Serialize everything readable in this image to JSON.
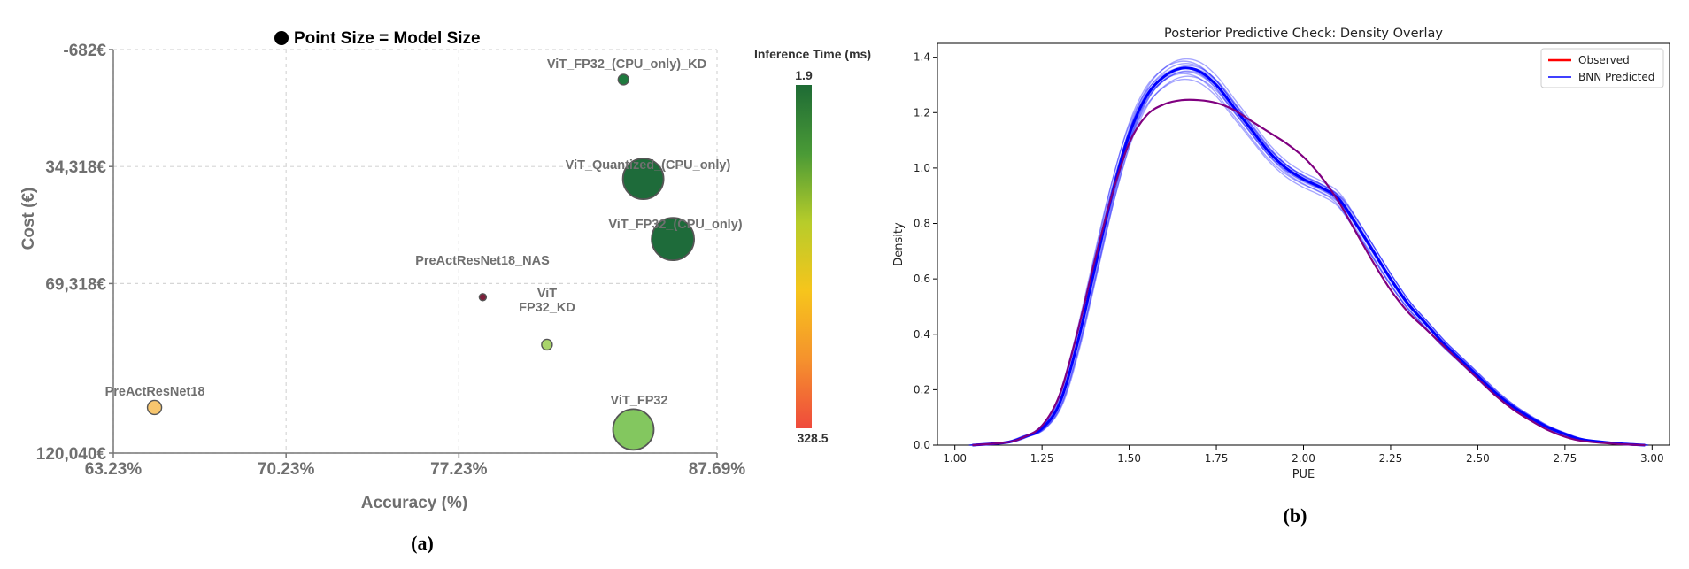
{
  "panels": {
    "a": "(a)",
    "b": "(b)"
  },
  "chart_data": [
    {
      "type": "scatter",
      "title": "Point Size = Model Size",
      "xlabel": "Accuracy (%)",
      "ylabel": "Cost (€)",
      "x_ticks": [
        "63.23%",
        "70.23%",
        "77.23%",
        "87.69%"
      ],
      "x_tick_values": [
        63.23,
        70.23,
        77.23,
        87.69
      ],
      "y_ticks": [
        "-682€",
        "34,318€",
        "69,318€",
        "120,040€"
      ],
      "y_tick_values": [
        -682,
        34318,
        69318,
        120040
      ],
      "xlim": [
        63.23,
        87.69
      ],
      "ylim": [
        120040,
        -682
      ],
      "y_inverted": true,
      "grid": true,
      "colorbar": {
        "label": "Inference Time (ms)",
        "min_label": "1.9",
        "max_label": "328.5",
        "min": 1.9,
        "max": 328.5,
        "colors": [
          "#1e6b35",
          "#4a9a36",
          "#b7cc2a",
          "#f6c51c",
          "#f5922d",
          "#ef4a3c"
        ]
      },
      "points": [
        {
          "label": "ViT_FP32_(CPU_only)_KD",
          "x": 83.9,
          "y": 8300,
          "model_size": 0.1,
          "color": "#1e7a3e"
        },
        {
          "label": "ViT_Quantized_(CPU_only)",
          "x": 84.7,
          "y": 38000,
          "model_size": 0.52,
          "color": "#1e6b3a"
        },
        {
          "label": "ViT_FP32_(CPU_only)",
          "x": 85.9,
          "y": 56000,
          "model_size": 0.62,
          "color": "#1e6b3a"
        },
        {
          "label": "PreActResNet18_NAS",
          "x": 78.2,
          "y": 73400,
          "model_size": 0.02,
          "color": "#7b1f3a"
        },
        {
          "label": "ViT\nFP32_KD",
          "x": 80.8,
          "y": 87600,
          "model_size": 0.11,
          "color": "#a9d46b"
        },
        {
          "label": "PreActResNet18",
          "x": 64.9,
          "y": 106400,
          "model_size": 0.16,
          "color": "#f7c66e"
        },
        {
          "label": "ViT_FP32",
          "x": 84.3,
          "y": 113000,
          "model_size": 0.66,
          "color": "#83c75f"
        }
      ]
    },
    {
      "type": "line",
      "title": "Posterior Predictive Check: Density Overlay",
      "xlabel": "PUE",
      "ylabel": "Density",
      "xlim": [
        0.95,
        3.05
      ],
      "ylim": [
        0,
        1.45
      ],
      "x_ticks": [
        "1.00",
        "1.25",
        "1.50",
        "1.75",
        "2.00",
        "2.25",
        "2.50",
        "2.75",
        "3.00"
      ],
      "y_ticks": [
        "0.0",
        "0.2",
        "0.4",
        "0.6",
        "0.8",
        "1.0",
        "1.2",
        "1.4"
      ],
      "legend": {
        "position": "top-right",
        "entries": [
          {
            "name": "Observed",
            "color": "#ff0000"
          },
          {
            "name": "BNN Predicted",
            "color": "#0000ff"
          }
        ]
      },
      "series": [
        {
          "name": "Observed",
          "color": "#800080",
          "x": [
            1.05,
            1.15,
            1.2,
            1.25,
            1.3,
            1.35,
            1.4,
            1.45,
            1.5,
            1.55,
            1.6,
            1.65,
            1.7,
            1.75,
            1.8,
            1.85,
            1.9,
            1.95,
            2.0,
            2.05,
            2.1,
            2.15,
            2.2,
            2.25,
            2.3,
            2.35,
            2.4,
            2.45,
            2.5,
            2.55,
            2.6,
            2.65,
            2.7,
            2.75,
            2.8,
            2.9,
            2.98
          ],
          "y": [
            0.0,
            0.01,
            0.03,
            0.07,
            0.18,
            0.4,
            0.66,
            0.9,
            1.09,
            1.19,
            1.23,
            1.245,
            1.245,
            1.235,
            1.21,
            1.17,
            1.13,
            1.09,
            1.04,
            0.97,
            0.88,
            0.77,
            0.66,
            0.56,
            0.48,
            0.42,
            0.36,
            0.3,
            0.24,
            0.18,
            0.13,
            0.09,
            0.055,
            0.03,
            0.015,
            0.004,
            0.0
          ]
        },
        {
          "name": "BNN Predicted",
          "color": "#0000ff",
          "x": [
            1.05,
            1.15,
            1.2,
            1.25,
            1.3,
            1.35,
            1.4,
            1.45,
            1.5,
            1.55,
            1.6,
            1.65,
            1.7,
            1.75,
            1.8,
            1.85,
            1.9,
            1.95,
            2.0,
            2.05,
            2.1,
            2.15,
            2.2,
            2.25,
            2.3,
            2.35,
            2.4,
            2.45,
            2.5,
            2.55,
            2.6,
            2.65,
            2.7,
            2.75,
            2.8,
            2.9,
            2.98
          ],
          "y": [
            0.0,
            0.01,
            0.03,
            0.06,
            0.15,
            0.36,
            0.63,
            0.9,
            1.12,
            1.26,
            1.33,
            1.36,
            1.35,
            1.3,
            1.22,
            1.14,
            1.06,
            1.0,
            0.96,
            0.93,
            0.89,
            0.8,
            0.7,
            0.6,
            0.51,
            0.44,
            0.37,
            0.31,
            0.25,
            0.19,
            0.14,
            0.1,
            0.065,
            0.04,
            0.02,
            0.006,
            0.0
          ]
        }
      ]
    }
  ]
}
